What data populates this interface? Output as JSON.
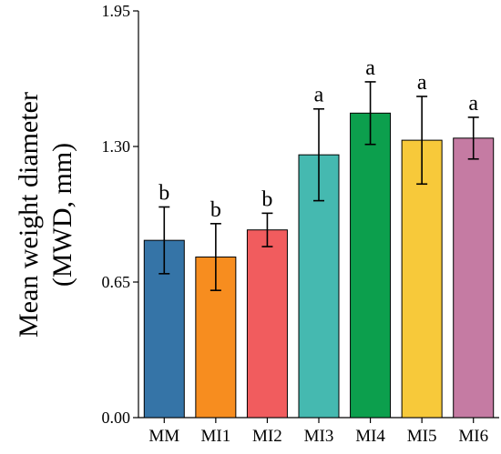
{
  "chart_data": {
    "type": "bar",
    "title": "",
    "xlabel": "",
    "ylabel_line1": "Mean weight diameter",
    "ylabel_line2": "(MWD, mm)",
    "ylim": [
      0,
      1.95
    ],
    "yticks": [
      "0.00",
      "0.65",
      "1.30",
      "1.95"
    ],
    "ytick_values": [
      0,
      0.65,
      1.3,
      1.95
    ],
    "categories": [
      "MM",
      "MI1",
      "MI2",
      "MI3",
      "MI4",
      "MI5",
      "MI6"
    ],
    "values": [
      0.85,
      0.77,
      0.9,
      1.26,
      1.46,
      1.33,
      1.34
    ],
    "errors": [
      0.16,
      0.16,
      0.08,
      0.22,
      0.15,
      0.21,
      0.1
    ],
    "significance": [
      "b",
      "b",
      "b",
      "a",
      "a",
      "a",
      "a"
    ],
    "colors": [
      "#3574a7",
      "#f78d1f",
      "#f15c5e",
      "#45b9b0",
      "#0c9f4d",
      "#f7c93a",
      "#c57ba3"
    ],
    "grid": false,
    "legend": "none"
  }
}
